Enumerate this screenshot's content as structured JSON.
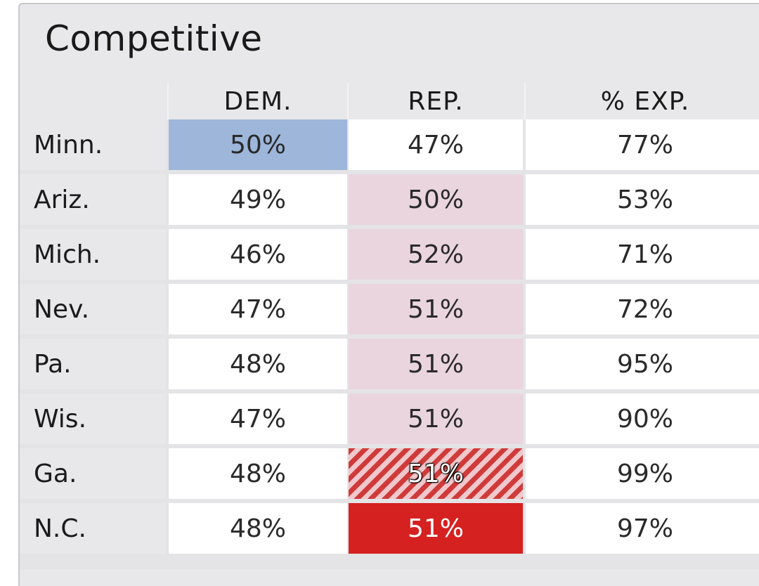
{
  "title": "Competitive",
  "columns": [
    "DEM.",
    "REP.",
    "% EXP."
  ],
  "rows": [
    {
      "state": "Minn.",
      "dem": "50%",
      "rep": "47%",
      "exp": "77%",
      "dem_style": "lean",
      "rep_style": "none"
    },
    {
      "state": "Ariz.",
      "dem": "49%",
      "rep": "50%",
      "exp": "53%",
      "dem_style": "none",
      "rep_style": "lean"
    },
    {
      "state": "Mich.",
      "dem": "46%",
      "rep": "52%",
      "exp": "71%",
      "dem_style": "none",
      "rep_style": "lean"
    },
    {
      "state": "Nev.",
      "dem": "47%",
      "rep": "51%",
      "exp": "72%",
      "dem_style": "none",
      "rep_style": "lean"
    },
    {
      "state": "Pa.",
      "dem": "48%",
      "rep": "51%",
      "exp": "95%",
      "dem_style": "none",
      "rep_style": "lean"
    },
    {
      "state": "Wis.",
      "dem": "47%",
      "rep": "51%",
      "exp": "90%",
      "dem_style": "none",
      "rep_style": "lean"
    },
    {
      "state": "Ga.",
      "dem": "48%",
      "rep": "51%",
      "exp": "99%",
      "dem_style": "none",
      "rep_style": "hatched"
    },
    {
      "state": "N.C.",
      "dem": "48%",
      "rep": "51%",
      "exp": "97%",
      "dem_style": "none",
      "rep_style": "winner"
    }
  ],
  "colors": {
    "dem_lean": "#9db6da",
    "rep_lean": "#ead5de",
    "rep_winner": "#d52120",
    "rep_hatch_dark": "#cf3b3a",
    "rep_hatch_light": "#f0c8cc"
  }
}
